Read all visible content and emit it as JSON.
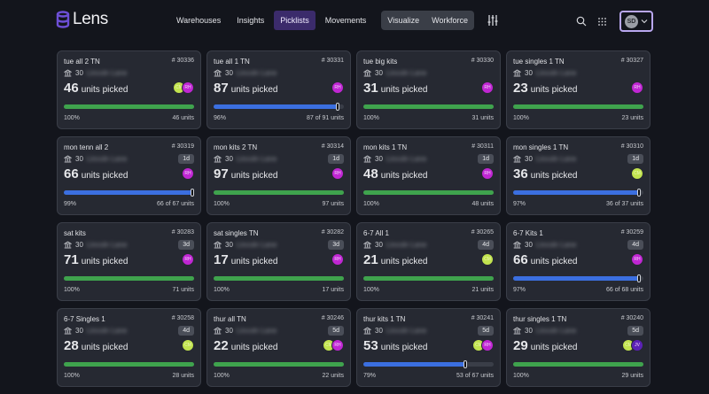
{
  "app": {
    "name": "Lens",
    "brand_color": "#6d4fd6"
  },
  "nav": {
    "items": [
      "Warehouses",
      "Insights",
      "Picklists",
      "Movements"
    ],
    "group": [
      "Visualize",
      "Workforce"
    ],
    "active": "Picklists"
  },
  "user": {
    "initials": "SD"
  },
  "colors": {
    "complete": "#3fa34d",
    "partial": "#3b6fe0",
    "RH": "#c026d3",
    "CM": "#c2e34f",
    "JV": "#5b21b6"
  },
  "cards": [
    {
      "title": "tue all 2 TN",
      "id": "# 30336",
      "addr_num": "30",
      "addr": "Lincoln Lane",
      "age": "",
      "units": "46",
      "label": "units picked",
      "avatars": [
        "CM",
        "RH"
      ],
      "pct": "100%",
      "progress": 100,
      "count": "46 units"
    },
    {
      "title": "tue all 1 TN",
      "id": "# 30331",
      "addr_num": "30",
      "addr": "Lincoln Lane",
      "age": "",
      "units": "87",
      "label": "units picked",
      "avatars": [
        "RH"
      ],
      "pct": "96%",
      "progress": 96,
      "count": "87 of 91 units"
    },
    {
      "title": "tue big kits",
      "id": "# 30330",
      "addr_num": "30",
      "addr": "Lincoln Lane",
      "age": "",
      "units": "31",
      "label": "units picked",
      "avatars": [
        "RH"
      ],
      "pct": "100%",
      "progress": 100,
      "count": "31 units"
    },
    {
      "title": "tue singles 1 TN",
      "id": "# 30327",
      "addr_num": "30",
      "addr": "Lincoln Lane",
      "age": "",
      "units": "23",
      "label": "units picked",
      "avatars": [
        "RH"
      ],
      "pct": "100%",
      "progress": 100,
      "count": "23 units"
    },
    {
      "title": "mon tenn all 2",
      "id": "# 30319",
      "addr_num": "30",
      "addr": "Lincoln Lane",
      "age": "1d",
      "units": "66",
      "label": "units picked",
      "avatars": [
        "RH"
      ],
      "pct": "99%",
      "progress": 99,
      "count": "66 of 67 units"
    },
    {
      "title": "mon kits 2 TN",
      "id": "# 30314",
      "addr_num": "30",
      "addr": "Lincoln Lane",
      "age": "1d",
      "units": "97",
      "label": "units picked",
      "avatars": [
        "RH"
      ],
      "pct": "100%",
      "progress": 100,
      "count": "97 units"
    },
    {
      "title": "mon kits 1 TN",
      "id": "# 30311",
      "addr_num": "30",
      "addr": "Lincoln Lane",
      "age": "1d",
      "units": "48",
      "label": "units picked",
      "avatars": [
        "RH"
      ],
      "pct": "100%",
      "progress": 100,
      "count": "48 units"
    },
    {
      "title": "mon singles 1 TN",
      "id": "# 30310",
      "addr_num": "30",
      "addr": "Lincoln Lane",
      "age": "1d",
      "units": "36",
      "label": "units picked",
      "avatars": [
        "CM"
      ],
      "pct": "97%",
      "progress": 97,
      "count": "36 of 37 units"
    },
    {
      "title": "sat kits",
      "id": "# 30283",
      "addr_num": "30",
      "addr": "Lincoln Lane",
      "age": "3d",
      "units": "71",
      "label": "units picked",
      "avatars": [
        "RH"
      ],
      "pct": "100%",
      "progress": 100,
      "count": "71 units"
    },
    {
      "title": "sat singles TN",
      "id": "# 30282",
      "addr_num": "30",
      "addr": "Lincoln Lane",
      "age": "3d",
      "units": "17",
      "label": "units picked",
      "avatars": [
        "RH"
      ],
      "pct": "100%",
      "progress": 100,
      "count": "17 units"
    },
    {
      "title": "6-7 All 1",
      "id": "# 30265",
      "addr_num": "30",
      "addr": "Lincoln Lane",
      "age": "4d",
      "units": "21",
      "label": "units picked",
      "avatars": [
        "CM"
      ],
      "pct": "100%",
      "progress": 100,
      "count": "21 units"
    },
    {
      "title": "6-7 Kits 1",
      "id": "# 30259",
      "addr_num": "30",
      "addr": "Lincoln Lane",
      "age": "4d",
      "units": "66",
      "label": "units picked",
      "avatars": [
        "RH"
      ],
      "pct": "97%",
      "progress": 97,
      "count": "66 of 68 units"
    },
    {
      "title": "6-7 Singles 1",
      "id": "# 30258",
      "addr_num": "30",
      "addr": "Lincoln Lane",
      "age": "4d",
      "units": "28",
      "label": "units picked",
      "avatars": [
        "CM"
      ],
      "pct": "100%",
      "progress": 100,
      "count": "28 units"
    },
    {
      "title": "thur all TN",
      "id": "# 30246",
      "addr_num": "30",
      "addr": "Lincoln Lane",
      "age": "5d",
      "units": "22",
      "label": "units picked",
      "avatars": [
        "CM",
        "RH"
      ],
      "pct": "100%",
      "progress": 100,
      "count": "22 units"
    },
    {
      "title": "thur kits 1 TN",
      "id": "# 30241",
      "addr_num": "30",
      "addr": "Lincoln Lane",
      "age": "5d",
      "units": "53",
      "label": "units picked",
      "avatars": [
        "CM",
        "RH"
      ],
      "pct": "79%",
      "progress": 79,
      "count": "53 of 67 units"
    },
    {
      "title": "thur singles 1 TN",
      "id": "# 30240",
      "addr_num": "30",
      "addr": "Lincoln Lane",
      "age": "5d",
      "units": "29",
      "label": "units picked",
      "avatars": [
        "CM",
        "JV"
      ],
      "pct": "100%",
      "progress": 100,
      "count": "29 units"
    }
  ]
}
